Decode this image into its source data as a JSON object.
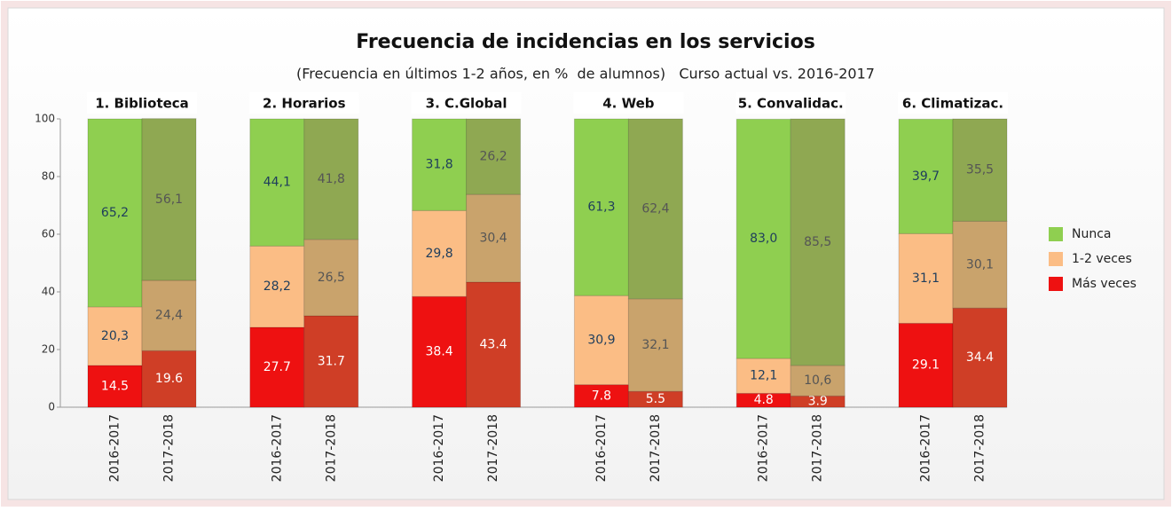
{
  "chart_data": {
    "type": "stacked-bar",
    "title": "Frecuencia de incidencias en los servicios",
    "subtitle": "(Frecuencia en últimos 1-2 años, en %  de alumnos)   Curso actual vs. 2016-2017",
    "groups": [
      "1. Biblioteca",
      "2. Horarios",
      "3. C.Global",
      "4. Web",
      "5. Convalidac.",
      "6. Climatizac."
    ],
    "categories": [
      "2016-2017",
      "2017-2018",
      "2016-2017",
      "2017-2018",
      "2016-2017",
      "2017-2018",
      "2016-2017",
      "2017-2018",
      "2016-2017",
      "2017-2018",
      "2016-2017",
      "2017-2018"
    ],
    "ylim": [
      0,
      100
    ],
    "yticks": [
      0,
      20,
      40,
      60,
      80,
      100
    ],
    "legend": "right",
    "series": [
      {
        "name": "Más veces",
        "colors": [
          "#ee1111",
          "#cf3e26"
        ],
        "values": [
          14.5,
          19.6,
          27.7,
          31.7,
          38.4,
          43.4,
          7.8,
          5.5,
          4.8,
          3.9,
          29.1,
          34.4
        ]
      },
      {
        "name": "1-2 veces",
        "colors": [
          "#fbbd85",
          "#c9a36c"
        ],
        "values": [
          20.3,
          24.4,
          28.2,
          26.5,
          29.8,
          30.4,
          30.9,
          32.1,
          12.1,
          10.6,
          31.1,
          30.1
        ],
        "value_labels": [
          "20,3",
          "24,4",
          "28,2",
          "26,5",
          "29,8",
          "30,4",
          "30,9",
          "32,1",
          "12,1",
          "10,6",
          "31,1",
          "30,1"
        ]
      },
      {
        "name": "Nunca",
        "colors": [
          "#8fcf50",
          "#8fa852"
        ],
        "values": [
          65.2,
          56.1,
          44.1,
          41.8,
          31.8,
          26.2,
          61.3,
          62.4,
          83.0,
          85.5,
          39.7,
          35.5
        ],
        "value_labels": [
          "65,2",
          "56,1",
          "44,1",
          "41,8",
          "31,8",
          "26,2",
          "61,3",
          "62,4",
          "83,0",
          "85,5",
          "39,7",
          "35,5"
        ]
      }
    ]
  }
}
